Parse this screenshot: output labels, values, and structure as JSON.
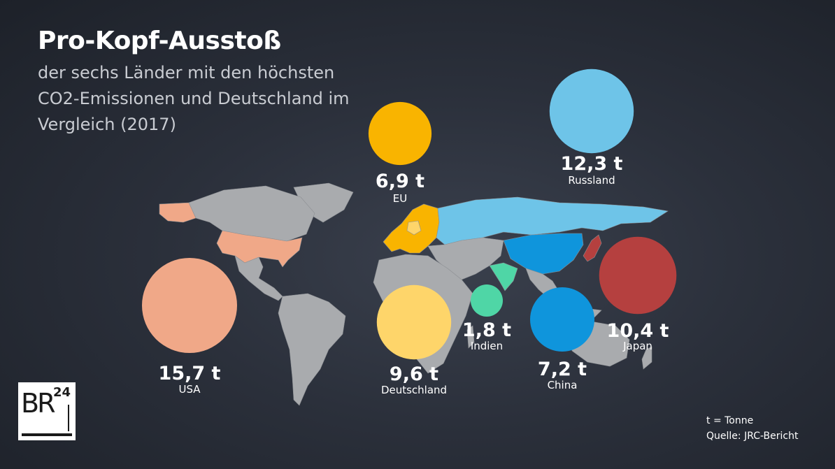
{
  "header": {
    "title": "Pro-Kopf-Ausstoß",
    "subtitle": "der sechs Länder mit den höchsten CO2-Emissionen und Deutschland im Vergleich (2017)"
  },
  "footer": {
    "unit_note": "t = Tonne",
    "source": "Quelle: JRC-Bericht",
    "logo_text": "BR",
    "logo_number": "24"
  },
  "chart_data": {
    "type": "bubble-map",
    "title": "Pro-Kopf-Ausstoß",
    "subtitle": "der sechs Länder mit den höchsten CO2-Emissionen und Deutschland im Vergleich (2017)",
    "unit": "t",
    "series": [
      {
        "country": "USA",
        "value": 15.7,
        "label": "15,7 t",
        "color": "#f0a888"
      },
      {
        "country": "Russland",
        "value": 12.3,
        "label": "12,3 t",
        "color": "#6ec4e8"
      },
      {
        "country": "Japan",
        "value": 10.4,
        "label": "10,4 t",
        "color": "#b5403f"
      },
      {
        "country": "Deutschland",
        "value": 9.6,
        "label": "9,6 t",
        "color": "#fed56a"
      },
      {
        "country": "China",
        "value": 7.2,
        "label": "7,2 t",
        "color": "#0f95dc"
      },
      {
        "country": "EU",
        "value": 6.9,
        "label": "6,9 t",
        "color": "#f9b400"
      },
      {
        "country": "Indien",
        "value": 1.8,
        "label": "1,8 t",
        "color": "#4fd6a6"
      }
    ],
    "map_color": "#a9abae"
  }
}
